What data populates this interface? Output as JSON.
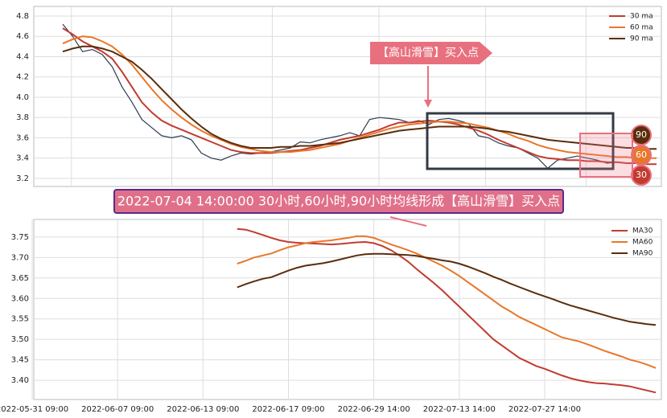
{
  "chart_data": [
    {
      "type": "line",
      "annotation": "【高山滑雪】买入点",
      "ylim": [
        3.12,
        4.895
      ],
      "yticks": [
        3.2,
        3.4,
        3.6,
        3.8,
        {
          "value": 4,
          "label": "4.0"
        },
        4.2,
        4.4,
        4.6,
        4.8
      ],
      "grid": true,
      "legend": "upper right",
      "price": {
        "color": "#2c3e50",
        "values": [
          4.72,
          4.6,
          4.45,
          4.47,
          4.42,
          4.3,
          4.1,
          3.95,
          3.78,
          3.7,
          3.62,
          3.6,
          3.62,
          3.58,
          3.45,
          3.4,
          3.38,
          3.42,
          3.45,
          3.44,
          3.45,
          3.46,
          3.48,
          3.5,
          3.56,
          3.55,
          3.58,
          3.6,
          3.62,
          3.65,
          3.62,
          3.78,
          3.8,
          3.79,
          3.78,
          3.75,
          3.77,
          3.73,
          3.78,
          3.79,
          3.77,
          3.74,
          3.62,
          3.6,
          3.55,
          3.52,
          3.5,
          3.45,
          3.4,
          3.3,
          3.38,
          3.4,
          3.42,
          3.4,
          3.38,
          3.35,
          3.36,
          null,
          null,
          null,
          null
        ]
      },
      "series": [
        {
          "name": "30 ma",
          "color": "#c23b2f",
          "end_label": "30",
          "values": [
            4.68,
            4.62,
            4.55,
            4.5,
            4.45,
            4.38,
            4.25,
            4.1,
            3.95,
            3.85,
            3.77,
            3.72,
            3.68,
            3.64,
            3.6,
            3.56,
            3.52,
            3.48,
            3.46,
            3.45,
            3.45,
            3.45,
            3.46,
            3.47,
            3.48,
            3.5,
            3.52,
            3.55,
            3.58,
            3.6,
            3.62,
            3.65,
            3.68,
            3.72,
            3.75,
            3.75,
            3.76,
            3.77,
            3.76,
            3.75,
            3.73,
            3.7,
            3.67,
            3.63,
            3.58,
            3.54,
            3.5,
            3.46,
            3.42,
            3.4,
            3.39,
            3.38,
            3.38,
            3.37,
            3.37,
            3.36,
            3.36,
            3.35,
            3.35,
            3.34,
            3.34
          ]
        },
        {
          "name": "60 ma",
          "color": "#e8772a",
          "end_label": "60",
          "values": [
            4.53,
            4.57,
            4.6,
            4.59,
            4.55,
            4.5,
            4.42,
            4.32,
            4.2,
            4.08,
            3.97,
            3.88,
            3.8,
            3.73,
            3.67,
            3.62,
            3.58,
            3.54,
            3.51,
            3.49,
            3.47,
            3.46,
            3.46,
            3.46,
            3.47,
            3.48,
            3.5,
            3.52,
            3.54,
            3.57,
            3.6,
            3.63,
            3.66,
            3.69,
            3.71,
            3.73,
            3.74,
            3.75,
            3.76,
            3.76,
            3.75,
            3.74,
            3.72,
            3.7,
            3.67,
            3.64,
            3.6,
            3.57,
            3.53,
            3.5,
            3.48,
            3.46,
            3.45,
            3.44,
            3.43,
            3.42,
            3.41,
            3.41,
            3.4,
            3.4,
            3.4
          ]
        },
        {
          "name": "90 ma",
          "color": "#5a2d0c",
          "end_label": "90",
          "values": [
            4.45,
            4.48,
            4.5,
            4.5,
            4.48,
            4.45,
            4.4,
            4.35,
            4.27,
            4.18,
            4.08,
            3.98,
            3.88,
            3.79,
            3.71,
            3.64,
            3.59,
            3.55,
            3.52,
            3.5,
            3.5,
            3.5,
            3.51,
            3.51,
            3.52,
            3.52,
            3.53,
            3.54,
            3.55,
            3.57,
            3.59,
            3.61,
            3.63,
            3.65,
            3.67,
            3.68,
            3.69,
            3.7,
            3.71,
            3.71,
            3.71,
            3.71,
            3.7,
            3.69,
            3.67,
            3.66,
            3.64,
            3.62,
            3.6,
            3.58,
            3.57,
            3.56,
            3.55,
            3.54,
            3.53,
            3.52,
            3.51,
            3.5,
            3.5,
            3.49,
            3.49
          ]
        }
      ]
    },
    {
      "type": "line",
      "title": "2022-07-04 14:00:00 30小时,60小时,90小时均线形成【高山滑雪】买入点",
      "ylim": [
        3.353,
        3.793
      ],
      "yticks": [
        {
          "value": 3.4,
          "label": "3.40"
        },
        3.45,
        {
          "value": 3.5,
          "label": "3.50"
        },
        3.55,
        {
          "value": 3.6,
          "label": "3.60"
        },
        3.65,
        {
          "value": 3.7,
          "label": "3.70"
        },
        3.75
      ],
      "grid": true,
      "legend": "upper right",
      "categories": [
        "2022-05-31 09:00",
        null,
        null,
        null,
        null,
        null,
        null,
        null,
        null,
        null,
        "2022-06-07 09:00",
        null,
        null,
        null,
        null,
        null,
        null,
        null,
        null,
        null,
        "2022-06-13 09:00",
        null,
        null,
        null,
        null,
        null,
        null,
        null,
        null,
        null,
        "2022-06-17 09:00",
        null,
        null,
        null,
        null,
        null,
        null,
        null,
        null,
        null,
        "2022-06-29 14:00",
        null,
        null,
        null,
        null,
        null,
        null,
        null,
        null,
        null,
        "2022-07-13 14:00",
        null,
        null,
        null,
        null,
        null,
        null,
        null,
        null,
        null,
        "2022-07-27 14:00",
        null,
        null,
        null,
        null,
        null,
        null,
        null,
        null,
        null,
        null,
        null,
        null,
        null
      ],
      "series": [
        {
          "name": "MA30",
          "color": "#c23b2f",
          "values": [
            null,
            null,
            null,
            null,
            null,
            null,
            null,
            null,
            null,
            null,
            null,
            null,
            null,
            null,
            null,
            null,
            null,
            null,
            null,
            null,
            null,
            null,
            null,
            null,
            3.77,
            3.768,
            3.762,
            3.755,
            3.748,
            3.742,
            3.738,
            3.736,
            3.735,
            3.734,
            3.733,
            3.732,
            3.733,
            3.735,
            3.737,
            3.738,
            3.735,
            3.728,
            3.718,
            3.705,
            3.69,
            3.672,
            3.655,
            3.638,
            3.62,
            3.6,
            3.58,
            3.56,
            3.54,
            3.52,
            3.5,
            3.485,
            3.47,
            3.455,
            3.445,
            3.435,
            3.428,
            3.42,
            3.412,
            3.405,
            3.4,
            3.396,
            3.393,
            3.392,
            3.39,
            3.388,
            3.385,
            3.38,
            3.375,
            3.37
          ]
        },
        {
          "name": "MA60",
          "color": "#e8772a",
          "values": [
            null,
            null,
            null,
            null,
            null,
            null,
            null,
            null,
            null,
            null,
            null,
            null,
            null,
            null,
            null,
            null,
            null,
            null,
            null,
            null,
            null,
            null,
            null,
            null,
            3.685,
            3.692,
            3.7,
            3.705,
            3.71,
            3.718,
            3.725,
            3.73,
            3.735,
            3.738,
            3.74,
            3.742,
            3.745,
            3.748,
            3.752,
            3.752,
            3.748,
            3.74,
            3.732,
            3.725,
            3.718,
            3.71,
            3.7,
            3.69,
            3.68,
            3.668,
            3.655,
            3.64,
            3.625,
            3.61,
            3.595,
            3.58,
            3.568,
            3.555,
            3.545,
            3.535,
            3.525,
            3.515,
            3.505,
            3.5,
            3.495,
            3.488,
            3.48,
            3.472,
            3.465,
            3.458,
            3.45,
            3.445,
            3.438,
            3.43
          ]
        },
        {
          "name": "MA90",
          "color": "#5a2d0c",
          "values": [
            null,
            null,
            null,
            null,
            null,
            null,
            null,
            null,
            null,
            null,
            null,
            null,
            null,
            null,
            null,
            null,
            null,
            null,
            null,
            null,
            null,
            null,
            null,
            null,
            3.627,
            3.635,
            3.642,
            3.648,
            3.652,
            3.66,
            3.668,
            3.675,
            3.68,
            3.683,
            3.686,
            3.69,
            3.695,
            3.7,
            3.705,
            3.708,
            3.709,
            3.709,
            3.708,
            3.707,
            3.706,
            3.704,
            3.7,
            3.697,
            3.693,
            3.69,
            3.685,
            3.678,
            3.67,
            3.662,
            3.653,
            3.645,
            3.636,
            3.628,
            3.62,
            3.612,
            3.605,
            3.598,
            3.59,
            3.583,
            3.577,
            3.571,
            3.565,
            3.559,
            3.553,
            3.548,
            3.543,
            3.54,
            3.537,
            3.535
          ]
        }
      ]
    }
  ]
}
